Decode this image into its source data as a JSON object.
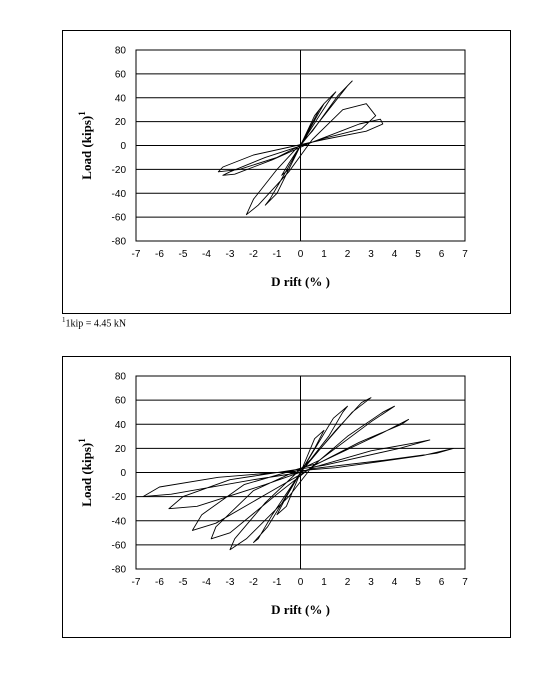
{
  "footnote": {
    "sup": "1",
    "text": "1kip = 4.45 kN"
  },
  "chart_data": [
    {
      "type": "line",
      "title": "",
      "xlabel": "D rift (% )",
      "ylabel": "Load (kips)",
      "ylabel_sup": "1",
      "xlim": [
        -7,
        7
      ],
      "ylim": [
        -80,
        80
      ],
      "xticks": [
        -7,
        -6,
        -5,
        -4,
        -3,
        -2,
        -1,
        0,
        1,
        2,
        3,
        4,
        5,
        6,
        7
      ],
      "yticks": [
        80,
        60,
        40,
        20,
        0,
        -20,
        -40,
        -60,
        -80
      ],
      "grid": "horizontal",
      "series": [
        {
          "x": [
            0,
            0.4,
            0.8,
            1.0,
            0.6,
            0,
            -0.5,
            -0.8,
            -0.5,
            0,
            0.8,
            1.3,
            1.5,
            1.0,
            0,
            -0.8,
            -1.3,
            -1.5,
            -1.0,
            0,
            1.2,
            2.0,
            2.2,
            1.6,
            0.5,
            -1.0,
            -2.0,
            -2.3,
            -1.8,
            -0.5,
            0.5,
            1.8,
            2.8,
            3.2,
            2.6,
            1.0,
            -1.5,
            -3.0,
            -3.3,
            -2.8,
            -1.2,
            0.4,
            2.5,
            3.4,
            3.5,
            2.8,
            1.0,
            -2.0,
            -3.3,
            -3.5,
            -2.6,
            -1.0,
            0
          ],
          "y": [
            0,
            15,
            30,
            35,
            25,
            0,
            -15,
            -25,
            -20,
            0,
            25,
            40,
            45,
            35,
            0,
            -28,
            -45,
            -50,
            -40,
            0,
            30,
            50,
            54,
            42,
            12,
            -20,
            -45,
            -58,
            -50,
            -22,
            5,
            30,
            35,
            25,
            14,
            6,
            -10,
            -22,
            -25,
            -24,
            -12,
            2,
            18,
            22,
            18,
            12,
            5,
            -8,
            -18,
            -22,
            -20,
            -10,
            0
          ]
        }
      ]
    },
    {
      "type": "line",
      "title": "",
      "xlabel": "D rift (% )",
      "ylabel": "Load (kips)",
      "ylabel_sup": "1",
      "xlim": [
        -7,
        7
      ],
      "ylim": [
        -80,
        80
      ],
      "xticks": [
        -7,
        -6,
        -5,
        -4,
        -3,
        -2,
        -1,
        0,
        1,
        2,
        3,
        4,
        5,
        6,
        7
      ],
      "yticks": [
        80,
        60,
        40,
        20,
        0,
        -20,
        -40,
        -60,
        -80
      ],
      "grid": "horizontal",
      "series": [
        {
          "x": [
            0,
            0.6,
            1.0,
            0.6,
            0,
            -0.6,
            -1.0,
            -0.6,
            0,
            1.2,
            1.8,
            2.0,
            1.4,
            0,
            -1.2,
            -1.8,
            -2.0,
            -1.4,
            0,
            1.5,
            2.6,
            3.0,
            2.2,
            0.5,
            -1.5,
            -2.8,
            -3.0,
            -2.3,
            -0.5,
            0.5,
            2.0,
            3.5,
            4.0,
            3.0,
            0.8,
            -2.0,
            -3.6,
            -3.8,
            -3.0,
            -1.0,
            0.5,
            2.5,
            4.3,
            4.6,
            3.4,
            0.8,
            -2.4,
            -4.2,
            -4.6,
            -3.6,
            -1.2,
            0.5,
            3.0,
            5.0,
            5.5,
            4.2,
            1.0,
            -3.0,
            -5.0,
            -5.6,
            -4.4,
            -1.5,
            0.4,
            3.5,
            5.8,
            6.5,
            5.2,
            1.5,
            -3.5,
            -6.0,
            -6.7,
            -5.5,
            -2.0,
            0
          ],
          "y": [
            0,
            20,
            35,
            28,
            0,
            -20,
            -35,
            -28,
            0,
            30,
            50,
            55,
            45,
            0,
            -35,
            -55,
            -58,
            -45,
            0,
            35,
            58,
            62,
            50,
            12,
            -25,
            -55,
            -64,
            -55,
            -20,
            5,
            30,
            50,
            55,
            42,
            10,
            -15,
            -45,
            -55,
            -50,
            -18,
            5,
            25,
            40,
            44,
            32,
            8,
            -10,
            -35,
            -48,
            -42,
            -15,
            4,
            18,
            25,
            27,
            20,
            6,
            -6,
            -20,
            -30,
            -28,
            -10,
            3,
            10,
            16,
            20,
            14,
            4,
            -4,
            -12,
            -20,
            -18,
            -6,
            0
          ]
        }
      ]
    }
  ]
}
